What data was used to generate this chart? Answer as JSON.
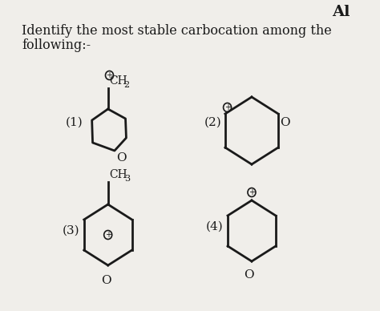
{
  "title_line1": "Identify the most stable carbocation among the",
  "title_line2": "following:-",
  "bg_color": "#f0eeea",
  "text_color": "#1a1a1a",
  "title_fontsize": 11.5,
  "label_fontsize": 11,
  "chem_fontsize": 10,
  "corner_text": "Al",
  "structures": [
    "1",
    "2",
    "3",
    "4"
  ]
}
